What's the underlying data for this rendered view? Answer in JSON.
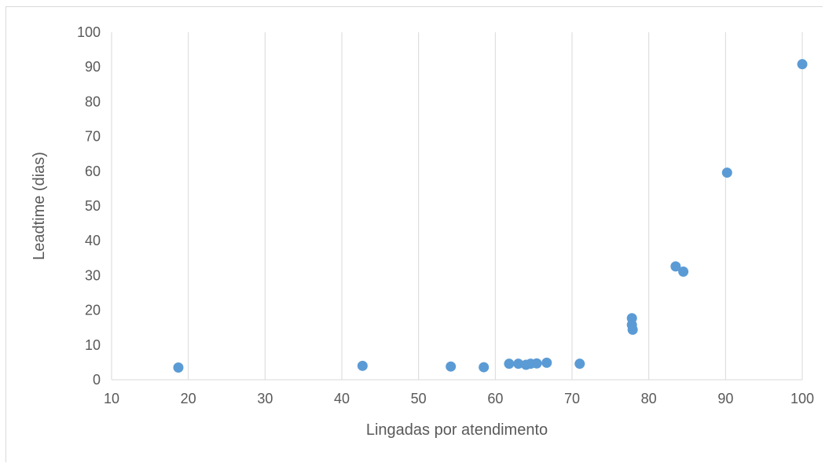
{
  "chart_data": {
    "type": "scatter",
    "title": "",
    "xlabel": "Lingadas por atendimento",
    "ylabel": "Leadtime (dias)",
    "xlim": [
      10,
      100
    ],
    "ylim": [
      0,
      100
    ],
    "xticks": [
      10,
      20,
      30,
      40,
      50,
      60,
      70,
      80,
      90,
      100
    ],
    "yticks": [
      0,
      10,
      20,
      30,
      40,
      50,
      60,
      70,
      80,
      90,
      100
    ],
    "xtick_labels": [
      "10",
      "20",
      "30",
      "40",
      "50",
      "60",
      "70",
      "80",
      "90",
      "100"
    ],
    "ytick_labels": [
      "0",
      "10",
      "20",
      "30",
      "40",
      "50",
      "60",
      "70",
      "80",
      "90",
      "100"
    ],
    "grid": "vertical",
    "legend": "none",
    "marker_color": "#5b9bd5",
    "grid_color": "#d9d9d9",
    "text_color": "#595959",
    "series": [
      {
        "points": [
          {
            "x": 18.7,
            "y": 3.5
          },
          {
            "x": 42.7,
            "y": 4.0
          },
          {
            "x": 54.2,
            "y": 3.8
          },
          {
            "x": 58.5,
            "y": 3.6
          },
          {
            "x": 61.8,
            "y": 4.6
          },
          {
            "x": 63.0,
            "y": 4.6
          },
          {
            "x": 64.0,
            "y": 4.3
          },
          {
            "x": 64.6,
            "y": 4.6
          },
          {
            "x": 65.4,
            "y": 4.7
          },
          {
            "x": 66.7,
            "y": 4.9
          },
          {
            "x": 71.0,
            "y": 4.6
          },
          {
            "x": 77.8,
            "y": 17.7
          },
          {
            "x": 77.8,
            "y": 15.8
          },
          {
            "x": 77.9,
            "y": 14.4
          },
          {
            "x": 83.5,
            "y": 32.6
          },
          {
            "x": 84.5,
            "y": 31.1
          },
          {
            "x": 90.2,
            "y": 59.6
          },
          {
            "x": 100.0,
            "y": 90.8
          }
        ]
      }
    ]
  }
}
